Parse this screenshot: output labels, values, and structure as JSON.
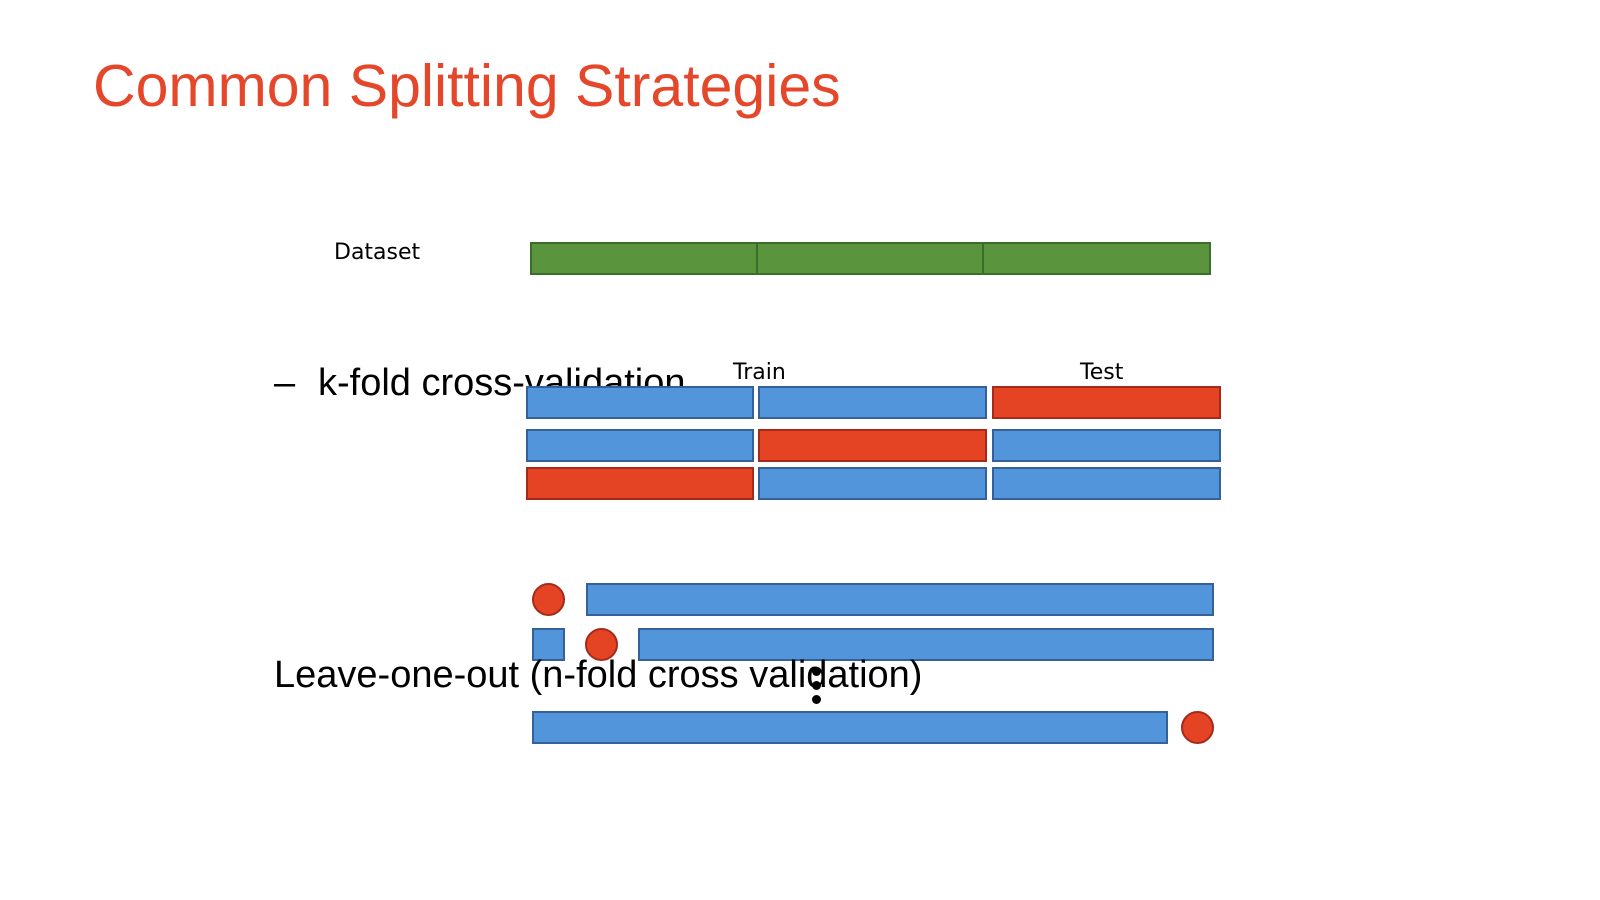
{
  "slide": {
    "title": "Common Splitting Strategies"
  },
  "diagram": {
    "dataset_label": "Dataset",
    "train_label": "Train",
    "test_label": "Test",
    "kfold_dash": "–",
    "kfold_label": "k-fold cross-validation",
    "loo_label": "Leave-one-out (n-fold cross validation)"
  },
  "colors": {
    "title": "#E5472A",
    "dataset": "#5A943C",
    "train": "#5295DB",
    "test": "#E54424"
  }
}
